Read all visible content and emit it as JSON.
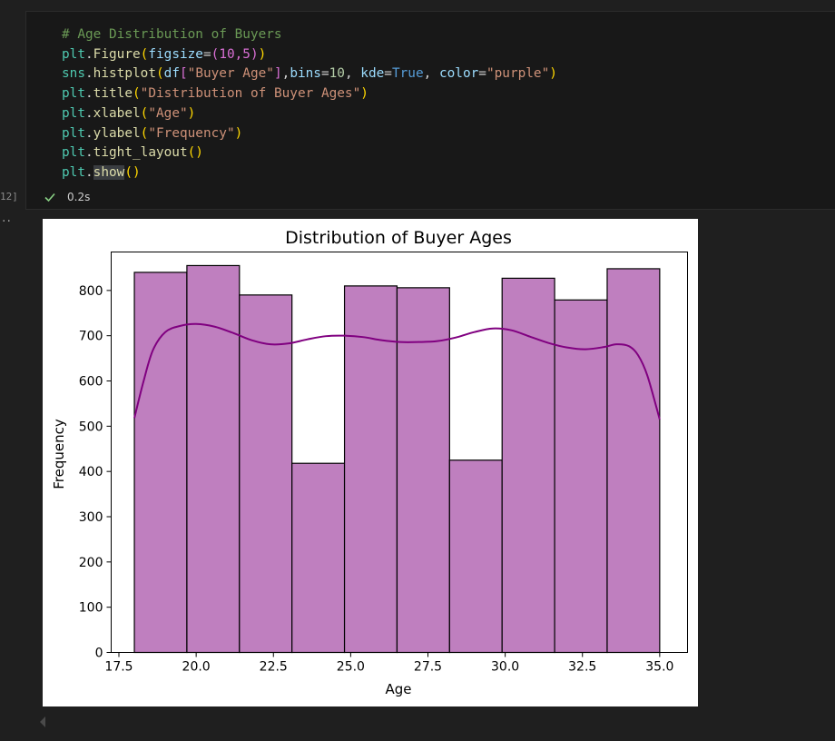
{
  "cell": {
    "execution_count": "12]",
    "status_time": "0.2s",
    "output_marker": "··",
    "code": {
      "line1": "# Age Distribution of Buyers",
      "figure_fn": "Figure",
      "figsize_param": "figsize",
      "figsize_value": "(10,5)",
      "histplot_fn": "histplot",
      "df_name": "df",
      "column": "\"Buyer Age\"",
      "bins_param": "bins",
      "bins_value": "10",
      "kde_param": "kde",
      "kde_value": "True",
      "color_param": "color",
      "color_value": "\"purple\"",
      "title_fn": "title",
      "title_arg": "\"Distribution of Buyer Ages\"",
      "xlabel_fn": "xlabel",
      "xlabel_arg": "\"Age\"",
      "ylabel_fn": "ylabel",
      "ylabel_arg": "\"Frequency\"",
      "tight_fn": "tight_layout",
      "show_fn": "show",
      "plt": "plt",
      "sns": "sns"
    }
  },
  "chart_data": {
    "type": "bar",
    "title": "Distribution of Buyer Ages",
    "xlabel": "Age",
    "ylabel": "Frequency",
    "xlim": [
      17.25,
      35.9
    ],
    "ylim": [
      0,
      885
    ],
    "x_ticks": [
      17.5,
      20.0,
      22.5,
      25.0,
      27.5,
      30.0,
      32.5,
      35.0
    ],
    "x_tick_labels": [
      "17.5",
      "20.0",
      "22.5",
      "25.0",
      "27.5",
      "30.0",
      "32.5",
      "35.0"
    ],
    "y_ticks": [
      0,
      100,
      200,
      300,
      400,
      500,
      600,
      700,
      800
    ],
    "y_tick_labels": [
      "0",
      "100",
      "200",
      "300",
      "400",
      "500",
      "600",
      "700",
      "800"
    ],
    "bin_edges": [
      18.0,
      19.7,
      21.4,
      23.1,
      24.8,
      26.5,
      28.2,
      29.9,
      31.6,
      33.3,
      35.0
    ],
    "values": [
      840,
      855,
      790,
      418,
      810,
      806,
      425,
      827,
      779,
      848
    ],
    "kde": {
      "x": [
        18.0,
        18.3,
        18.6,
        19.0,
        19.5,
        20.0,
        20.6,
        21.2,
        21.8,
        22.4,
        23.0,
        23.6,
        24.2,
        24.8,
        25.4,
        26.0,
        26.6,
        27.2,
        27.8,
        28.4,
        29.0,
        29.6,
        30.2,
        30.8,
        31.4,
        32.0,
        32.6,
        33.2,
        33.6,
        34.0,
        34.3,
        34.6,
        35.0
      ],
      "y": [
        518,
        600,
        668,
        708,
        722,
        726,
        720,
        706,
        690,
        681,
        683,
        692,
        699,
        700,
        697,
        690,
        686,
        686,
        688,
        696,
        708,
        716,
        712,
        698,
        684,
        674,
        670,
        675,
        681,
        677,
        657,
        612,
        515
      ]
    },
    "color": "#800080",
    "bar_fill": "#bf7fbf",
    "grid": false,
    "legend": "none"
  }
}
